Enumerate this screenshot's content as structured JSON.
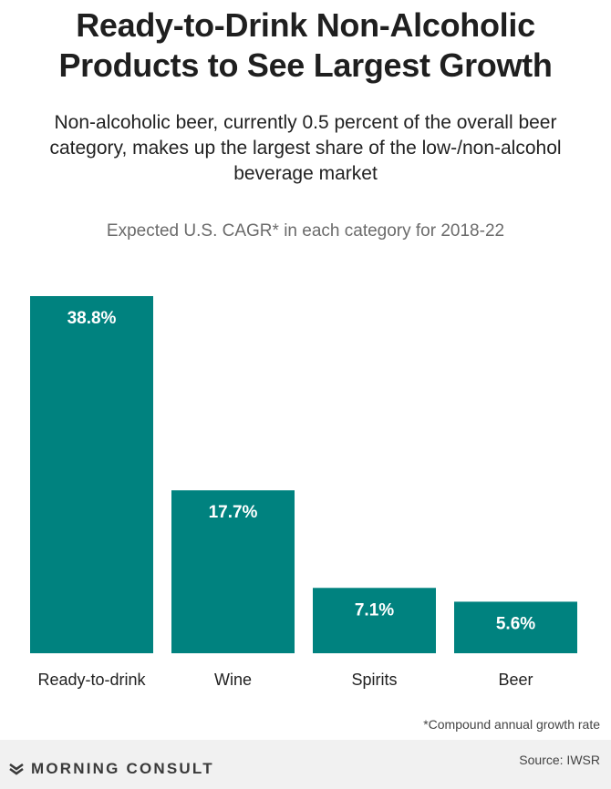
{
  "title_line1": "Ready-to-Drink Non-Alcoholic",
  "title_line2": "Products to See Largest Growth",
  "subtitle": "Non-alcoholic beer, currently 0.5 percent of the overall beer category, makes up the largest share of the low-/non-alcohol beverage market",
  "footnote": "*Compound annual growth rate",
  "brand": "MORNING CONSULT",
  "source": "Source: IWSR",
  "colors": {
    "bar": "#00827f",
    "bar_label": "#ffffff"
  },
  "chart_data": {
    "type": "bar",
    "title": "Expected U.S. CAGR* in each category for 2018-22",
    "categories": [
      "Ready-to-drink",
      "Wine",
      "Spirits",
      "Beer"
    ],
    "values": [
      38.8,
      17.7,
      7.1,
      5.6
    ],
    "data_labels": [
      "38.8%",
      "17.7%",
      "7.1%",
      "5.6%"
    ],
    "ylim": [
      0,
      38.8
    ],
    "grid": false,
    "legend": "none"
  }
}
